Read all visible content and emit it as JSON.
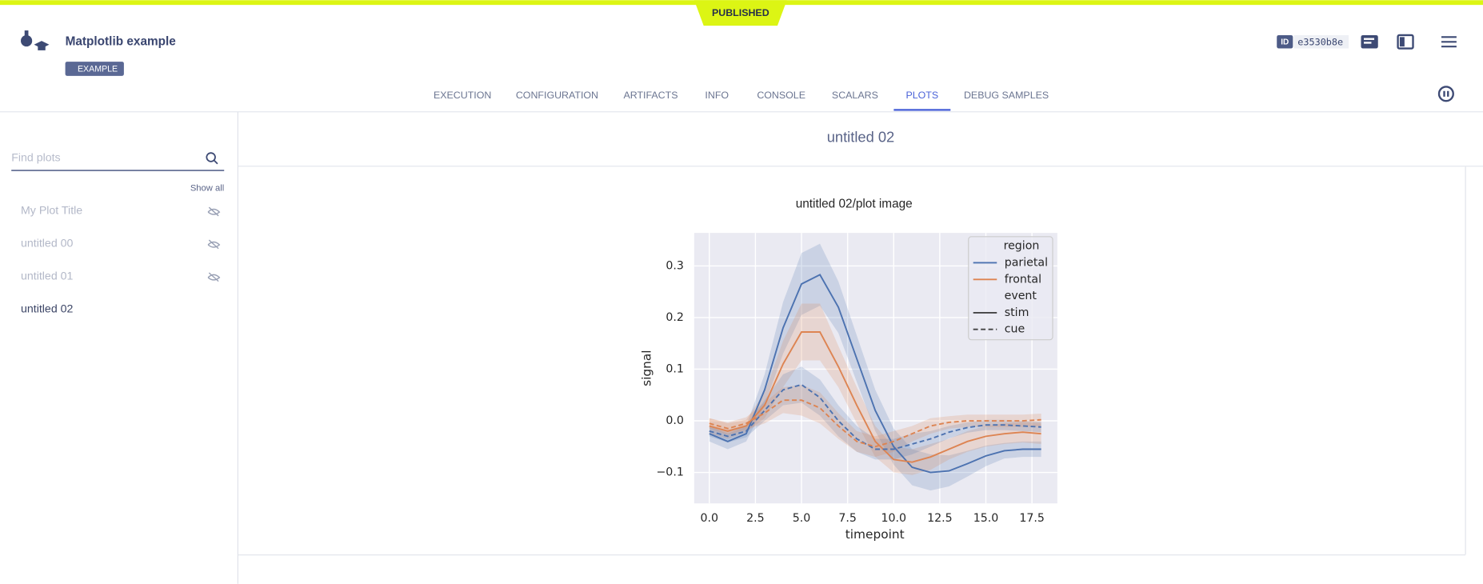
{
  "status": "PUBLISHED",
  "header": {
    "title": "Matplotlib example",
    "tag": "EXAMPLE",
    "id_label": "ID",
    "id": "e3530b8e"
  },
  "tabs": [
    "EXECUTION",
    "CONFIGURATION",
    "ARTIFACTS",
    "INFO",
    "CONSOLE",
    "SCALARS",
    "PLOTS",
    "DEBUG SAMPLES"
  ],
  "active_tab": 6,
  "sidebar": {
    "search_placeholder": "Find plots",
    "show_all": "Show all",
    "plots": [
      {
        "label": "My Plot Title",
        "hidden": true
      },
      {
        "label": "untitled 00",
        "hidden": true
      },
      {
        "label": "untitled 01",
        "hidden": true
      },
      {
        "label": "untitled 02",
        "hidden": false
      }
    ]
  },
  "section_title": "untitled 02",
  "plot": {
    "type": "line",
    "title": "untitled 02/plot image",
    "x_label": "timepoint",
    "y_label": "signal",
    "x": [
      0,
      1,
      2,
      3,
      4,
      5,
      6,
      7,
      8,
      9,
      10,
      11,
      12,
      13,
      14,
      15,
      16,
      17,
      18
    ],
    "xlim": [
      -0.82,
      18.88
    ],
    "ylim": [
      -0.16,
      0.364
    ],
    "xticks": [
      {
        "value": 0,
        "label": "0.0"
      },
      {
        "value": 2.5,
        "label": "2.5"
      },
      {
        "value": 5,
        "label": "5.0"
      },
      {
        "value": 7.5,
        "label": "7.5"
      },
      {
        "value": 10,
        "label": "10.0"
      },
      {
        "value": 12.5,
        "label": "12.5"
      },
      {
        "value": 15,
        "label": "15.0"
      },
      {
        "value": 17.5,
        "label": "17.5"
      }
    ],
    "yticks": [
      {
        "value": -0.1,
        "label": "−0.1"
      },
      {
        "value": 0,
        "label": "0.0"
      },
      {
        "value": 0.1,
        "label": "0.1"
      },
      {
        "value": 0.2,
        "label": "0.2"
      },
      {
        "value": 0.3,
        "label": "0.3"
      }
    ],
    "grid": true,
    "legend_position": "upper right",
    "hue_title": "region",
    "hue": [
      {
        "name": "parietal",
        "color": "#4c72b0"
      },
      {
        "name": "frontal",
        "color": "#dd8452"
      }
    ],
    "style_title": "event",
    "style": [
      {
        "name": "stim",
        "dashed": false
      },
      {
        "name": "cue",
        "dashed": true
      }
    ],
    "series": [
      {
        "hue": 0,
        "style": 0,
        "values": [
          -0.025,
          -0.04,
          -0.025,
          0.06,
          0.18,
          0.265,
          0.283,
          0.22,
          0.12,
          0.02,
          -0.05,
          -0.09,
          -0.1,
          -0.097,
          -0.083,
          -0.068,
          -0.058,
          -0.055,
          -0.055
        ],
        "errors": [
          0.015,
          0.015,
          0.015,
          0.03,
          0.05,
          0.06,
          0.06,
          0.05,
          0.045,
          0.04,
          0.035,
          0.035,
          0.035,
          0.03,
          0.025,
          0.02,
          0.015,
          0.015,
          0.015
        ]
      },
      {
        "hue": 1,
        "style": 0,
        "values": [
          -0.01,
          -0.02,
          -0.01,
          0.03,
          0.11,
          0.172,
          0.172,
          0.105,
          0.03,
          -0.04,
          -0.075,
          -0.08,
          -0.07,
          -0.055,
          -0.04,
          -0.03,
          -0.025,
          -0.022,
          -0.025
        ],
        "errors": [
          0.015,
          0.015,
          0.012,
          0.025,
          0.045,
          0.055,
          0.055,
          0.04,
          0.035,
          0.03,
          0.025,
          0.025,
          0.025,
          0.02,
          0.02,
          0.02,
          0.02,
          0.02,
          0.02
        ]
      },
      {
        "hue": 0,
        "style": 1,
        "values": [
          -0.02,
          -0.03,
          -0.02,
          0.02,
          0.06,
          0.07,
          0.045,
          0.0,
          -0.035,
          -0.055,
          -0.055,
          -0.045,
          -0.035,
          -0.022,
          -0.013,
          -0.008,
          -0.008,
          -0.01,
          -0.012
        ],
        "errors": [
          0.01,
          0.012,
          0.012,
          0.02,
          0.03,
          0.035,
          0.035,
          0.03,
          0.025,
          0.02,
          0.02,
          0.02,
          0.015,
          0.012,
          0.01,
          0.01,
          0.01,
          0.01,
          0.01
        ]
      },
      {
        "hue": 1,
        "style": 1,
        "values": [
          -0.005,
          -0.015,
          -0.005,
          0.015,
          0.04,
          0.04,
          0.025,
          -0.01,
          -0.04,
          -0.05,
          -0.04,
          -0.025,
          -0.01,
          -0.003,
          0.0,
          0.0,
          0.0,
          0.0,
          0.002
        ],
        "errors": [
          0.01,
          0.012,
          0.012,
          0.02,
          0.025,
          0.03,
          0.03,
          0.025,
          0.02,
          0.02,
          0.02,
          0.015,
          0.015,
          0.012,
          0.012,
          0.012,
          0.012,
          0.012,
          0.012
        ]
      }
    ]
  }
}
